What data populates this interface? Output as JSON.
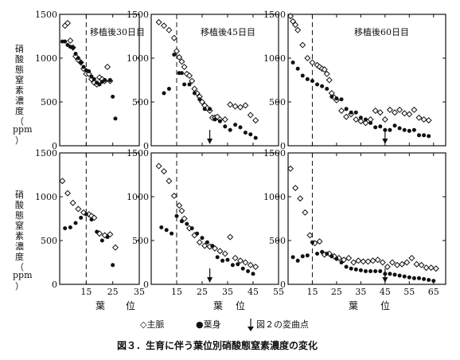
{
  "figure_caption": "図３．生育に伴う葉位別硝酸態窒素濃度の変化",
  "y_axis_label_top": [
    "硝",
    "酸",
    "態",
    "窒",
    "素",
    "濃",
    "度",
    "（",
    "ppm",
    "）"
  ],
  "y_axis_label_bottom": [
    "硝",
    "酸",
    "態",
    "窒",
    "素",
    "濃",
    "度",
    "（",
    "ppm",
    "）"
  ],
  "x_axis_label": [
    "葉",
    "位"
  ],
  "legend": {
    "midrib": "◇主脈",
    "blade": "●葉身",
    "arrow": "図２の変曲点"
  },
  "chart_data": [
    {
      "type": "scatter",
      "panel": "top-left",
      "title": "移植後30日目",
      "xlim": [
        5,
        35
      ],
      "ylim": [
        0,
        1500
      ],
      "ytick_labels": [
        "0",
        "500",
        "1000",
        "1500"
      ],
      "dashed_x": 15,
      "arrow_x": null,
      "series": [
        {
          "name": "主脈",
          "marker": "diamond",
          "x": [
            7,
            8,
            9,
            10,
            11,
            12,
            13,
            14,
            15,
            16,
            17,
            18,
            19,
            20,
            21,
            22,
            23,
            24
          ],
          "y": [
            1370,
            1400,
            1200,
            1120,
            1020,
            980,
            950,
            880,
            820,
            820,
            760,
            720,
            700,
            780,
            760,
            740,
            900,
            740
          ]
        },
        {
          "name": "葉身",
          "marker": "dot",
          "x": [
            6,
            7,
            8,
            9,
            10,
            11,
            12,
            13,
            14,
            15,
            16,
            17,
            18,
            19,
            20,
            21,
            22,
            24,
            25,
            26
          ],
          "y": [
            1190,
            1190,
            1150,
            1130,
            1120,
            1050,
            1000,
            950,
            900,
            860,
            850,
            790,
            760,
            720,
            700,
            730,
            750,
            750,
            560,
            310
          ]
        }
      ]
    },
    {
      "type": "scatter",
      "panel": "top-middle",
      "title": "移植後45日目",
      "xlim": [
        5,
        55
      ],
      "ylim": [
        0,
        1500
      ],
      "ytick_labels": [
        "0",
        "500",
        "1000",
        "1500"
      ],
      "dashed_x": 15,
      "arrow_x": 28,
      "series": [
        {
          "name": "主脈",
          "marker": "diamond",
          "x": [
            8,
            10,
            12,
            14,
            15,
            16,
            17,
            18,
            19,
            20,
            21,
            22,
            23,
            24,
            25,
            26,
            27,
            28,
            29,
            30,
            31,
            32,
            34,
            36,
            38,
            40,
            42,
            44,
            46
          ],
          "y": [
            1410,
            1370,
            1320,
            1230,
            1080,
            1010,
            960,
            900,
            820,
            800,
            740,
            650,
            600,
            560,
            500,
            460,
            430,
            400,
            320,
            320,
            330,
            300,
            300,
            470,
            450,
            440,
            460,
            350,
            290
          ]
        },
        {
          "name": "葉身",
          "marker": "dot",
          "x": [
            10,
            12,
            14,
            16,
            17,
            18,
            20,
            22,
            24,
            26,
            28,
            30,
            32,
            34,
            36,
            38,
            40,
            42,
            44,
            46
          ],
          "y": [
            600,
            650,
            1040,
            830,
            830,
            700,
            700,
            600,
            530,
            420,
            420,
            300,
            280,
            220,
            180,
            240,
            210,
            150,
            130,
            90
          ]
        }
      ]
    },
    {
      "type": "scatter",
      "panel": "top-right",
      "title": "移植後60日目",
      "xlim": [
        5,
        70
      ],
      "ylim": [
        0,
        1500
      ],
      "ytick_labels": [
        "0",
        "500",
        "1000",
        "1500"
      ],
      "dashed_x": 15,
      "arrow_x": 45,
      "series": [
        {
          "name": "主脈",
          "marker": "diamond",
          "x": [
            6,
            7,
            8,
            9,
            11,
            13,
            15,
            17,
            18,
            19,
            20,
            21,
            22,
            23,
            24,
            25,
            27,
            29,
            31,
            33,
            35,
            37,
            39,
            41,
            43,
            45,
            47,
            49,
            51,
            53,
            55,
            57,
            59,
            61,
            63
          ],
          "y": [
            1480,
            1420,
            1380,
            1320,
            1150,
            1000,
            950,
            920,
            900,
            880,
            870,
            820,
            750,
            600,
            550,
            520,
            400,
            330,
            360,
            300,
            280,
            260,
            300,
            400,
            380,
            300,
            410,
            380,
            410,
            370,
            360,
            410,
            320,
            300,
            290
          ]
        },
        {
          "name": "葉身",
          "marker": "dot",
          "x": [
            7,
            9,
            11,
            13,
            15,
            17,
            19,
            21,
            23,
            25,
            27,
            29,
            31,
            33,
            35,
            37,
            39,
            41,
            43,
            45,
            47,
            49,
            51,
            53,
            55,
            57,
            59,
            61,
            63
          ],
          "y": [
            950,
            880,
            800,
            760,
            740,
            700,
            680,
            650,
            560,
            540,
            530,
            420,
            380,
            380,
            320,
            300,
            260,
            210,
            220,
            180,
            180,
            230,
            200,
            180,
            170,
            180,
            120,
            120,
            110
          ]
        }
      ]
    },
    {
      "type": "scatter",
      "panel": "bottom-left",
      "title": "",
      "xlim": [
        5,
        35
      ],
      "ylim": [
        0,
        1500
      ],
      "ytick_labels": [
        "0",
        "500",
        "1000",
        "1500"
      ],
      "xtick_labels": [
        "15",
        "25",
        "35"
      ],
      "dashed_x": 15,
      "arrow_x": null,
      "series": [
        {
          "name": "主脈",
          "marker": "diamond",
          "x": [
            6,
            8,
            10,
            12,
            14,
            16,
            17,
            18,
            20,
            22,
            24,
            26
          ],
          "y": [
            1180,
            1040,
            930,
            860,
            820,
            800,
            780,
            760,
            580,
            560,
            570,
            420
          ]
        },
        {
          "name": "葉身",
          "marker": "dot",
          "x": [
            7,
            9,
            11,
            13,
            15,
            17,
            19,
            21,
            23,
            25
          ],
          "y": [
            640,
            650,
            700,
            760,
            800,
            740,
            600,
            500,
            540,
            220
          ]
        }
      ]
    },
    {
      "type": "scatter",
      "panel": "bottom-middle",
      "title": "",
      "xlim": [
        5,
        55
      ],
      "ylim": [
        0,
        1500
      ],
      "ytick_labels": [
        "0",
        "500",
        "1000",
        "1500"
      ],
      "xtick_labels": [
        "15",
        "25",
        "35",
        "45",
        "55"
      ],
      "dashed_x": 15,
      "arrow_x": 28,
      "series": [
        {
          "name": "主脈",
          "marker": "diamond",
          "x": [
            8,
            10,
            12,
            14,
            16,
            17,
            18,
            20,
            22,
            24,
            26,
            28,
            30,
            32,
            34,
            36,
            38,
            40,
            42,
            44,
            46
          ],
          "y": [
            1350,
            1290,
            1180,
            1010,
            900,
            840,
            750,
            640,
            560,
            480,
            440,
            430,
            410,
            380,
            350,
            540,
            300,
            270,
            250,
            220,
            200
          ]
        },
        {
          "name": "葉身",
          "marker": "dot",
          "x": [
            9,
            11,
            13,
            15,
            17,
            19,
            21,
            23,
            25,
            27,
            29,
            31,
            33,
            35,
            37,
            39,
            41,
            43,
            45
          ],
          "y": [
            650,
            620,
            580,
            780,
            720,
            690,
            640,
            580,
            530,
            480,
            440,
            310,
            270,
            280,
            220,
            230,
            180,
            150,
            120
          ]
        }
      ]
    },
    {
      "type": "scatter",
      "panel": "bottom-right",
      "title": "",
      "xlim": [
        5,
        70
      ],
      "ylim": [
        0,
        1500
      ],
      "ytick_labels": [
        "0",
        "500",
        "1000",
        "1500"
      ],
      "xtick_labels": [
        "15",
        "25",
        "35",
        "45",
        "55",
        "65"
      ],
      "dashed_x": 15,
      "arrow_x": 45,
      "series": [
        {
          "name": "主脈",
          "marker": "diamond",
          "x": [
            6,
            8,
            10,
            12,
            14,
            16,
            18,
            20,
            22,
            24,
            26,
            28,
            30,
            32,
            34,
            36,
            38,
            40,
            42,
            44,
            46,
            48,
            50,
            52,
            54,
            56,
            58,
            60,
            62,
            64,
            66
          ],
          "y": [
            1320,
            1100,
            980,
            820,
            560,
            470,
            490,
            340,
            350,
            320,
            300,
            280,
            300,
            250,
            270,
            260,
            260,
            270,
            280,
            250,
            200,
            250,
            220,
            230,
            250,
            300,
            230,
            220,
            190,
            190,
            180
          ]
        },
        {
          "name": "葉身",
          "marker": "dot",
          "x": [
            7,
            9,
            11,
            13,
            15,
            17,
            19,
            21,
            23,
            25,
            27,
            29,
            31,
            33,
            35,
            37,
            39,
            41,
            43,
            45,
            47,
            49,
            51,
            53,
            55,
            57,
            59,
            61,
            63,
            65
          ],
          "y": [
            310,
            270,
            320,
            330,
            480,
            350,
            370,
            350,
            320,
            290,
            250,
            200,
            180,
            170,
            160,
            150,
            150,
            150,
            150,
            120,
            120,
            110,
            100,
            90,
            80,
            70,
            70,
            60,
            50,
            40
          ]
        }
      ]
    }
  ]
}
